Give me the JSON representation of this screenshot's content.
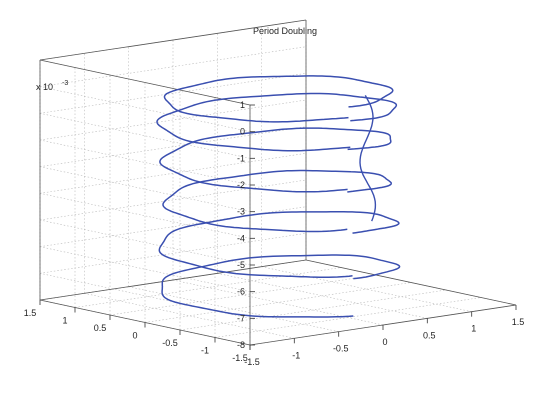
{
  "chart_data": {
    "type": "line3d",
    "title": "Period Doubling",
    "grid": true,
    "xlim": [
      -1.5,
      1.5
    ],
    "ylim": [
      -1.5,
      1.5
    ],
    "zlim": [
      -8,
      1
    ],
    "z_exponent_label": "x 10",
    "z_exponent_power": "-3",
    "x_ticks": [
      "-1.5",
      "-1",
      "-0.5",
      "0",
      "0.5",
      "1",
      "1.5"
    ],
    "y_ticks": [
      "-1.5",
      "-1",
      "-0.5",
      "0",
      "0.5",
      "1",
      "1.5"
    ],
    "z_ticks": [
      "1",
      "0",
      "-1",
      "-2",
      "-3",
      "-4",
      "-5",
      "-6",
      "-7",
      "-8"
    ],
    "series_color": "#3a4fb0",
    "series": [
      {
        "description_of_shape": "helical trajectory with period-doubled loops",
        "loops": [
          {
            "radius": 1.05,
            "z_start": -6.5,
            "z_end": -7.9
          },
          {
            "radius": 1.05,
            "z_start": -4.8,
            "z_end": -6.4
          },
          {
            "radius": 1.0,
            "z_start": -3.3,
            "z_end": -4.7
          },
          {
            "radius": 1.02,
            "z_start": -1.7,
            "z_end": -3.2
          },
          {
            "radius": 1.05,
            "z_start": -0.6,
            "z_end": -1.6
          },
          {
            "radius": 1.0,
            "z_start": -0.1,
            "z_end": -0.5
          }
        ]
      }
    ]
  }
}
